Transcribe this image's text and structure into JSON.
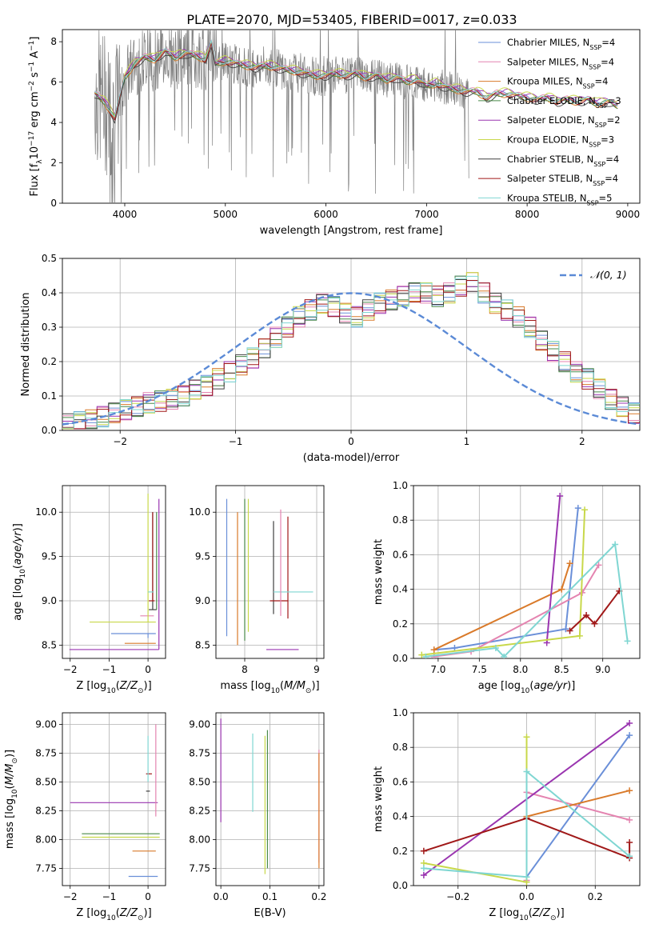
{
  "title": "PLATE=2070, MJD=53405, FIBERID=0017, z=0.033",
  "colors": {
    "data": "#808080",
    "series": [
      "#6a8fd8",
      "#e484b0",
      "#d97a2a",
      "#4a8a4a",
      "#9a35b0",
      "#c8d84a",
      "#404040",
      "#a01818",
      "#7fd6d2"
    ]
  },
  "chart_data": [
    {
      "id": "spectrum",
      "type": "line",
      "xlabel": "wavelength [Angstrom, rest frame]",
      "ylabel": "Flux [f_λ10^{-17} erg cm^{-2} s^{-1} A^{-1}]",
      "xlim": [
        3380,
        9120
      ],
      "ylim": [
        0,
        8.6
      ],
      "xticks": [
        4000,
        5000,
        6000,
        7000,
        8000,
        9000
      ],
      "yticks": [
        0,
        2,
        4,
        6,
        8
      ],
      "legend_position": "right",
      "legend": [
        {
          "model": "Chabrier MILES",
          "nssp": "4"
        },
        {
          "model": "Salpeter MILES",
          "nssp": "4"
        },
        {
          "model": "Kroupa MILES",
          "nssp": "4"
        },
        {
          "model": "Chabrier ELODIE",
          "nssp": "3"
        },
        {
          "model": "Salpeter ELODIE",
          "nssp": "2"
        },
        {
          "model": "Kroupa ELODIE",
          "nssp": "3"
        },
        {
          "model": "Chabrier STELIB",
          "nssp": "4"
        },
        {
          "model": "Salpeter STELIB",
          "nssp": "4"
        },
        {
          "model": "Kroupa STELIB",
          "nssp": "5"
        }
      ],
      "model_x": [
        3700,
        3800,
        3900,
        4000,
        4100,
        4200,
        4300,
        4400,
        4500,
        4600,
        4700,
        4800,
        4860,
        4900,
        5000,
        5100,
        5200,
        5300,
        5400,
        5500,
        5600,
        5700,
        5800,
        5900,
        6000,
        6100,
        6200,
        6300,
        6400,
        6500,
        6600,
        6700,
        6800,
        6900,
        7000,
        7100,
        7200,
        7300,
        7400,
        7500,
        7600,
        7700,
        7800,
        7900,
        8000,
        8100,
        8200,
        8300,
        8400,
        8500,
        8600,
        8700,
        8800,
        8900
      ],
      "model_y": [
        5.4,
        5.0,
        4.2,
        6.2,
        6.9,
        7.2,
        7.1,
        7.5,
        7.2,
        7.4,
        7.3,
        7.1,
        7.9,
        6.9,
        7.0,
        6.9,
        6.8,
        6.7,
        6.8,
        6.7,
        6.6,
        6.5,
        6.4,
        6.3,
        6.3,
        6.4,
        6.3,
        6.4,
        6.2,
        6.3,
        6.1,
        6.2,
        6.0,
        6.1,
        5.8,
        5.9,
        5.7,
        5.6,
        5.5,
        5.5,
        5.2,
        5.4,
        5.4,
        5.3,
        5.2,
        5.1,
        5.2,
        5.0,
        5.1,
        5.0,
        5.1,
        4.9,
        5.0,
        4.8
      ]
    },
    {
      "id": "residuals",
      "type": "histogram",
      "xlabel": "(data-model)/error",
      "ylabel": "Normed distribution",
      "xlim": [
        -2.5,
        2.5
      ],
      "ylim": [
        0,
        0.5
      ],
      "xticks": [
        -2,
        -1,
        0,
        1,
        2
      ],
      "yticks": [
        0.0,
        0.1,
        0.2,
        0.3,
        0.4,
        0.5
      ],
      "legend_position": "top-right",
      "legend": [
        "𝒩(0, 1)"
      ],
      "curve": "gaussian mean 0 sigma 1",
      "bin_width": 0.1,
      "bins_center_values": [
        0.02,
        0.025,
        0.03,
        0.04,
        0.05,
        0.06,
        0.07,
        0.08,
        0.085,
        0.09,
        0.1,
        0.12,
        0.13,
        0.15,
        0.17,
        0.19,
        0.21,
        0.24,
        0.27,
        0.3,
        0.33,
        0.35,
        0.37,
        0.36,
        0.34,
        0.33,
        0.35,
        0.37,
        0.38,
        0.39,
        0.4,
        0.4,
        0.39,
        0.4,
        0.42,
        0.43,
        0.4,
        0.37,
        0.35,
        0.33,
        0.3,
        0.26,
        0.23,
        0.2,
        0.17,
        0.15,
        0.12,
        0.09,
        0.07,
        0.05
      ]
    },
    {
      "id": "age-vs-Z",
      "type": "errorbar",
      "xlabel": "Z [log10(Z/Z⊙)]",
      "ylabel": "age [log10(age/yr)]",
      "xlim": [
        -2.2,
        0.45
      ],
      "ylim": [
        8.35,
        10.3
      ],
      "xticks": [
        -2,
        -1,
        0
      ],
      "yticks": [
        8.5,
        9.0,
        9.5,
        10.0
      ],
      "points": [
        {
          "s": 0,
          "x": 0.0,
          "xerr": [
            0.95,
            0.2
          ],
          "y": 8.63,
          "yerr": [
            0.05,
            0.0
          ]
        },
        {
          "s": 1,
          "x": 0.0,
          "xerr": [
            0.2,
            0.15
          ],
          "y": 8.83,
          "yerr": [
            0.0,
            0.0
          ]
        },
        {
          "s": 2,
          "x": 0.0,
          "xerr": [
            0.6,
            0.2
          ],
          "y": 8.52,
          "yerr": [
            0.0,
            0.0
          ]
        },
        {
          "s": 4,
          "x": 0.28,
          "xerr": [
            2.3,
            0.0
          ],
          "y": 8.45,
          "yerr": [
            0.0,
            1.7
          ]
        },
        {
          "s": 5,
          "x": 0.0,
          "xerr": [
            1.5,
            0.2
          ],
          "y": 8.76,
          "yerr": [
            0.0,
            1.45
          ]
        },
        {
          "s": 6,
          "x": 0.12,
          "xerr": [
            0.1,
            0.1
          ],
          "y": 8.9,
          "yerr": [
            0.0,
            1.1
          ]
        },
        {
          "s": 7,
          "x": 0.12,
          "xerr": [
            0.1,
            0.05
          ],
          "y": 9.0,
          "yerr": [
            0.0,
            1.0
          ]
        },
        {
          "s": 8,
          "x": 0.0,
          "xerr": [
            0.0,
            0.15
          ],
          "y": 9.1,
          "yerr": [
            0.0,
            0.0
          ]
        },
        {
          "s": 3,
          "x": 0.22,
          "xerr": [
            0.0,
            0.0
          ],
          "y": 9.0,
          "yerr": [
            0.1,
            1.0
          ]
        }
      ]
    },
    {
      "id": "age-vs-mass",
      "type": "errorbar",
      "xlabel": "mass [log10(M/M⊙)]",
      "ylabel": "",
      "xlim": [
        7.6,
        9.1
      ],
      "ylim": [
        8.35,
        10.3
      ],
      "xticks": [
        8,
        9
      ],
      "yticks": [
        8.5,
        9.0,
        9.5,
        10.0
      ],
      "points": [
        {
          "s": 0,
          "x": 7.75,
          "xerr": [
            0.0,
            0.0
          ],
          "y": 9.0,
          "yerr": [
            0.4,
            1.15
          ]
        },
        {
          "s": 2,
          "x": 7.9,
          "xerr": [
            0.0,
            0.0
          ],
          "y": 8.9,
          "yerr": [
            0.4,
            1.1
          ]
        },
        {
          "s": 5,
          "x": 8.05,
          "xerr": [
            0.0,
            0.0
          ],
          "y": 9.0,
          "yerr": [
            0.35,
            1.15
          ]
        },
        {
          "s": 3,
          "x": 8.0,
          "xerr": [
            0.0,
            0.0
          ],
          "y": 9.0,
          "yerr": [
            0.45,
            1.15
          ]
        },
        {
          "s": 6,
          "x": 8.4,
          "xerr": [
            0.0,
            0.0
          ],
          "y": 9.0,
          "yerr": [
            0.15,
            0.9
          ]
        },
        {
          "s": 7,
          "x": 8.6,
          "xerr": [
            0.25,
            0.0
          ],
          "y": 9.0,
          "yerr": [
            0.2,
            0.95
          ]
        },
        {
          "s": 8,
          "x": 8.75,
          "xerr": [
            0.35,
            0.2
          ],
          "y": 9.1,
          "yerr": [
            0.0,
            0.0
          ]
        },
        {
          "s": 4,
          "x": 8.3,
          "xerr": [
            0.0,
            0.45
          ],
          "y": 8.45,
          "yerr": [
            0.0,
            0.0
          ]
        },
        {
          "s": 1,
          "x": 8.5,
          "xerr": [
            0.0,
            0.0
          ],
          "y": 8.83,
          "yerr": [
            0.0,
            1.2
          ]
        }
      ]
    },
    {
      "id": "mass-weight-vs-age",
      "type": "line",
      "xlabel": "age [log10(age/yr)]",
      "ylabel": "mass weight",
      "xlim": [
        6.7,
        9.45
      ],
      "ylim": [
        0,
        1.0
      ],
      "xticks": [
        7.0,
        7.5,
        8.0,
        8.5,
        9.0
      ],
      "yticks": [
        0.0,
        0.2,
        0.4,
        0.6,
        0.8,
        1.0
      ],
      "series": [
        {
          "s": 0,
          "x": [
            6.95,
            7.2,
            8.55,
            8.7
          ],
          "y": [
            0.05,
            0.06,
            0.17,
            0.87
          ]
        },
        {
          "s": 1,
          "x": [
            6.95,
            7.4,
            8.75,
            8.95
          ],
          "y": [
            0.01,
            0.04,
            0.38,
            0.54
          ]
        },
        {
          "s": 2,
          "x": [
            6.95,
            8.5,
            8.6
          ],
          "y": [
            0.05,
            0.4,
            0.55
          ]
        },
        {
          "s": 4,
          "x": [
            8.32,
            8.48
          ],
          "y": [
            0.09,
            0.94
          ]
        },
        {
          "s": 5,
          "x": [
            6.8,
            8.72,
            8.78
          ],
          "y": [
            0.02,
            0.13,
            0.86
          ]
        },
        {
          "s": 7,
          "x": [
            8.6,
            8.8,
            8.9,
            9.2
          ],
          "y": [
            0.16,
            0.25,
            0.2,
            0.39
          ]
        },
        {
          "s": 8,
          "x": [
            6.85,
            7.7,
            7.8,
            9.15,
            9.3
          ],
          "y": [
            0.01,
            0.06,
            0.01,
            0.66,
            0.1
          ]
        }
      ]
    },
    {
      "id": "mass-vs-Z",
      "type": "errorbar",
      "xlabel": "Z [log10(Z/Z⊙)]",
      "ylabel": "mass [log10(M/M⊙)]",
      "xlim": [
        -2.2,
        0.45
      ],
      "ylim": [
        7.6,
        9.1
      ],
      "xticks": [
        -2,
        -1,
        0
      ],
      "yticks": [
        7.75,
        8.0,
        8.25,
        8.5,
        8.75,
        9.0
      ],
      "points": [
        {
          "s": 3,
          "x": -0.4,
          "xerr": [
            1.3,
            0.7
          ],
          "y": 8.05,
          "yerr": [
            0.0,
            0.0
          ]
        },
        {
          "s": 5,
          "x": -0.5,
          "xerr": [
            1.2,
            0.8
          ],
          "y": 8.02,
          "yerr": [
            0.0,
            0.0
          ]
        },
        {
          "s": 4,
          "x": -0.3,
          "xerr": [
            1.7,
            0.55
          ],
          "y": 8.32,
          "yerr": [
            0.0,
            0.0
          ]
        },
        {
          "s": 2,
          "x": -0.1,
          "xerr": [
            0.3,
            0.3
          ],
          "y": 7.9,
          "yerr": [
            0.0,
            0.0
          ]
        },
        {
          "s": 0,
          "x": -0.1,
          "xerr": [
            0.4,
            0.35
          ],
          "y": 7.68,
          "yerr": [
            0.0,
            0.0
          ]
        },
        {
          "s": 7,
          "x": 0.0,
          "xerr": [
            0.05,
            0.1
          ],
          "y": 8.57,
          "yerr": [
            0.0,
            0.0
          ]
        },
        {
          "s": 6,
          "x": 0.0,
          "xerr": [
            0.05,
            0.05
          ],
          "y": 8.42,
          "yerr": [
            0.0,
            0.0
          ]
        },
        {
          "s": 1,
          "x": 0.2,
          "xerr": [
            0.0,
            0.0
          ],
          "y": 8.5,
          "yerr": [
            0.3,
            0.5
          ]
        },
        {
          "s": 8,
          "x": 0.0,
          "xerr": [
            0.0,
            0.0
          ],
          "y": 8.5,
          "yerr": [
            0.0,
            0.4
          ]
        }
      ]
    },
    {
      "id": "mass-vs-EBV",
      "type": "errorbar",
      "xlabel": "E(B-V)",
      "ylabel": "",
      "xlim": [
        -0.01,
        0.21
      ],
      "ylim": [
        7.6,
        9.1
      ],
      "xticks": [
        0.0,
        0.1,
        0.2
      ],
      "yticks": [
        7.75,
        8.0,
        8.25,
        8.5,
        8.75,
        9.0
      ],
      "points": [
        {
          "s": 4,
          "x": 0.0,
          "y": 8.6,
          "yerr": [
            0.45,
            0.45
          ]
        },
        {
          "s": 8,
          "x": 0.065,
          "y": 8.57,
          "yerr": [
            0.33,
            0.35
          ]
        },
        {
          "s": 5,
          "x": 0.09,
          "y": 8.3,
          "yerr": [
            0.6,
            0.6
          ]
        },
        {
          "s": 3,
          "x": 0.095,
          "y": 8.35,
          "yerr": [
            0.6,
            0.6
          ]
        },
        {
          "s": 1,
          "x": 0.2,
          "y": 8.3,
          "yerr": [
            0.5,
            0.48
          ]
        },
        {
          "s": 2,
          "x": 0.2,
          "y": 8.25,
          "yerr": [
            0.5,
            0.5
          ]
        }
      ]
    },
    {
      "id": "mass-weight-vs-Z",
      "type": "line",
      "xlabel": "Z [log10(Z/Z⊙)]",
      "ylabel": "mass weight",
      "xlim": [
        -0.33,
        0.33
      ],
      "ylim": [
        0,
        1.0
      ],
      "xticks": [
        -0.2,
        0.0,
        0.2
      ],
      "yticks": [
        0.0,
        0.2,
        0.4,
        0.6,
        0.8,
        1.0
      ],
      "series": [
        {
          "s": 0,
          "x": [
            0.0,
            0.0,
            0.3
          ],
          "y": [
            0.05,
            0.05,
            0.87
          ]
        },
        {
          "s": 1,
          "x": [
            0.0,
            0.0,
            0.3
          ],
          "y": [
            0.03,
            0.54,
            0.38
          ]
        },
        {
          "s": 2,
          "x": [
            0.0,
            0.0,
            0.3
          ],
          "y": [
            0.05,
            0.4,
            0.55
          ]
        },
        {
          "s": 4,
          "x": [
            -0.3,
            0.3
          ],
          "y": [
            0.06,
            0.94
          ]
        },
        {
          "s": 5,
          "x": [
            -0.3,
            0.0,
            0.0
          ],
          "y": [
            0.13,
            0.02,
            0.86
          ]
        },
        {
          "s": 7,
          "x": [
            -0.3,
            0.0,
            0.3,
            0.3
          ],
          "y": [
            0.2,
            0.39,
            0.16,
            0.25
          ]
        },
        {
          "s": 8,
          "x": [
            -0.3,
            0.0,
            0.0,
            0.3
          ],
          "y": [
            0.1,
            0.05,
            0.66,
            0.17
          ]
        }
      ]
    }
  ]
}
